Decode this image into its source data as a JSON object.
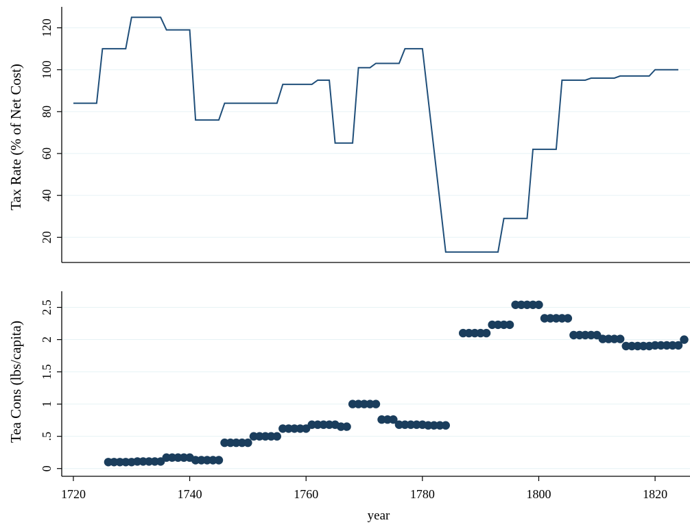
{
  "chart_data": [
    {
      "type": "line",
      "ylabel": "Tax Rate (% of Net Cost)",
      "xlim": [
        1718,
        1826
      ],
      "ylim": [
        8,
        130
      ],
      "yticks": [
        20,
        40,
        60,
        80,
        100,
        120
      ],
      "ytick_labels": [
        "20",
        "40",
        "60",
        "80",
        "100",
        "120"
      ],
      "grid": true,
      "color": "#1f4e79",
      "series": [
        {
          "x": [
            1720,
            1724,
            1725,
            1729,
            1730,
            1734,
            1735,
            1736,
            1740,
            1741,
            1745,
            1746,
            1755,
            1756,
            1760,
            1761,
            1762,
            1764,
            1765,
            1768,
            1769,
            1771,
            1772,
            1776,
            1777,
            1780,
            1784,
            1785,
            1793,
            1794,
            1798,
            1799,
            1803,
            1804,
            1808,
            1809,
            1813,
            1814,
            1819,
            1820,
            1824
          ],
          "y": [
            84,
            84,
            110,
            110,
            125,
            125,
            125,
            119,
            119,
            76,
            76,
            84,
            84,
            93,
            93,
            93,
            95,
            95,
            65,
            65,
            101,
            101,
            103,
            103,
            110,
            110,
            13,
            13,
            13,
            29,
            29,
            62,
            62,
            95,
            95,
            96,
            96,
            97,
            97,
            100,
            100
          ]
        }
      ]
    },
    {
      "type": "scatter",
      "xlabel": "year",
      "ylabel": "Tea Cons (lbs/capita)",
      "xlim": [
        1718,
        1826
      ],
      "ylim": [
        -0.12,
        2.75
      ],
      "xticks": [
        1720,
        1740,
        1760,
        1780,
        1800,
        1820
      ],
      "xtick_labels": [
        "1720",
        "1740",
        "1760",
        "1780",
        "1800",
        "1820"
      ],
      "yticks": [
        0,
        0.5,
        1,
        1.5,
        2,
        2.5
      ],
      "ytick_labels": [
        "0",
        ".5",
        "1",
        "1.5",
        "2",
        "2.5"
      ],
      "grid": true,
      "color": "#1a3d5c",
      "series": [
        {
          "x": [
            1726,
            1727,
            1728,
            1729,
            1730,
            1731,
            1732,
            1733,
            1734,
            1735,
            1736,
            1737,
            1738,
            1739,
            1740,
            1741,
            1742,
            1743,
            1744,
            1745,
            1746,
            1747,
            1748,
            1749,
            1750,
            1751,
            1752,
            1753,
            1754,
            1755,
            1756,
            1757,
            1758,
            1759,
            1760,
            1761,
            1762,
            1763,
            1764,
            1765,
            1766,
            1767,
            1768,
            1769,
            1770,
            1771,
            1772,
            1773,
            1774,
            1775,
            1776,
            1777,
            1778,
            1779,
            1780,
            1781,
            1782,
            1783,
            1784,
            1787,
            1788,
            1789,
            1790,
            1791,
            1792,
            1793,
            1794,
            1795,
            1796,
            1797,
            1798,
            1799,
            1800,
            1801,
            1802,
            1803,
            1804,
            1805,
            1806,
            1807,
            1808,
            1809,
            1810,
            1811,
            1812,
            1813,
            1814,
            1815,
            1816,
            1817,
            1818,
            1819,
            1820,
            1821,
            1822,
            1823,
            1824,
            1825
          ],
          "y": [
            0.1,
            0.1,
            0.1,
            0.1,
            0.1,
            0.11,
            0.11,
            0.11,
            0.11,
            0.11,
            0.17,
            0.17,
            0.17,
            0.17,
            0.17,
            0.13,
            0.13,
            0.13,
            0.13,
            0.13,
            0.4,
            0.4,
            0.4,
            0.4,
            0.4,
            0.5,
            0.5,
            0.5,
            0.5,
            0.5,
            0.62,
            0.62,
            0.62,
            0.62,
            0.62,
            0.68,
            0.68,
            0.68,
            0.68,
            0.68,
            0.65,
            0.65,
            1.0,
            1.0,
            1.0,
            1.0,
            1.0,
            0.76,
            0.76,
            0.76,
            0.68,
            0.68,
            0.68,
            0.68,
            0.68,
            0.67,
            0.67,
            0.67,
            0.67,
            2.1,
            2.1,
            2.1,
            2.1,
            2.1,
            2.23,
            2.23,
            2.23,
            2.23,
            2.54,
            2.54,
            2.54,
            2.54,
            2.54,
            2.33,
            2.33,
            2.33,
            2.33,
            2.33,
            2.07,
            2.07,
            2.07,
            2.07,
            2.07,
            2.01,
            2.01,
            2.01,
            2.01,
            1.9,
            1.9,
            1.9,
            1.9,
            1.9,
            1.91,
            1.91,
            1.91,
            1.91,
            1.91,
            2.0
          ]
        }
      ]
    }
  ]
}
